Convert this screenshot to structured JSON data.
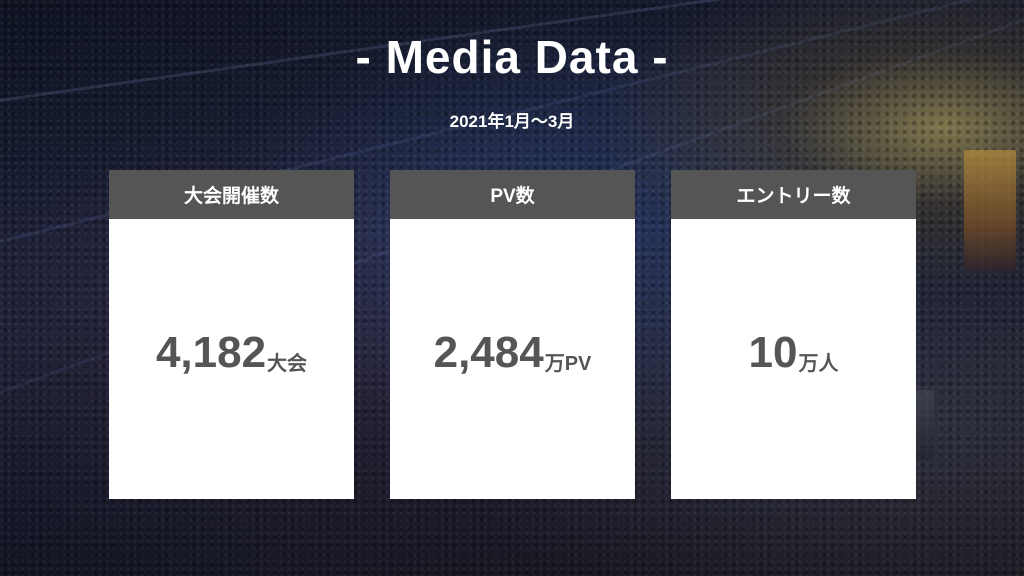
{
  "title": "- Media Data -",
  "period": "2021年1月〜3月",
  "cards": [
    {
      "label": "大会開催数",
      "value": "4,182",
      "unit": "大会"
    },
    {
      "label": "PV数",
      "value": "2,484",
      "unit": "万PV"
    },
    {
      "label": "エントリー数",
      "value": "10",
      "unit": "万人"
    }
  ],
  "colors": {
    "card_header": "#555555",
    "card_body": "#ffffff",
    "value_text": "#555555",
    "title_text": "#ffffff"
  }
}
